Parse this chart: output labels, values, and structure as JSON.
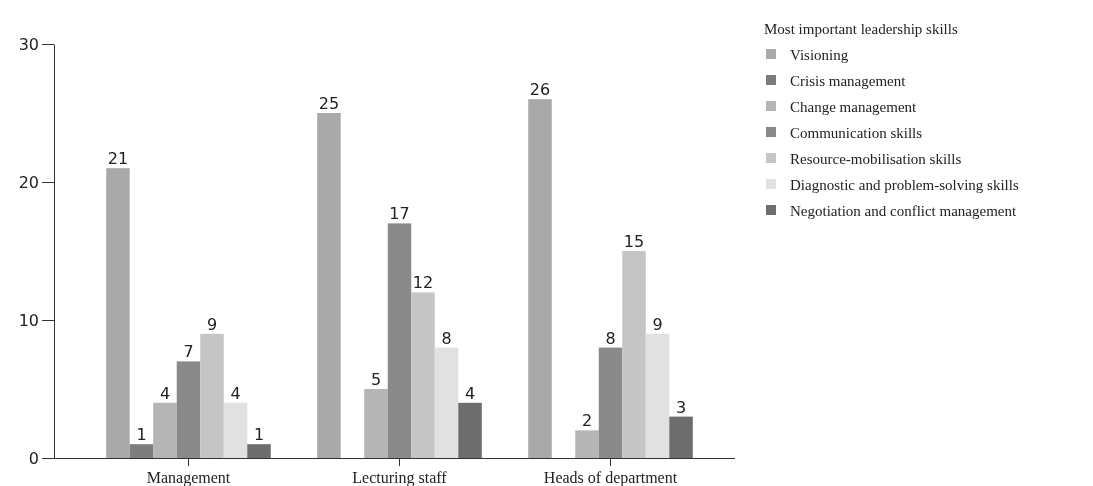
{
  "chart_data": {
    "type": "bar",
    "categories": [
      "Management",
      "Lecturing staff",
      "Heads of department"
    ],
    "legend_title": "Most important leadership skills",
    "series": [
      {
        "name": "Visioning",
        "color": "#a9a9a9",
        "values": [
          21,
          25,
          26
        ]
      },
      {
        "name": "Crisis management",
        "color": "#7d7d7d",
        "values": [
          1,
          null,
          null
        ]
      },
      {
        "name": "Change management",
        "color": "#b5b5b5",
        "values": [
          4,
          5,
          2
        ]
      },
      {
        "name": "Communication skills",
        "color": "#8a8a8a",
        "values": [
          7,
          17,
          8
        ]
      },
      {
        "name": "Resource-mobilisation skills",
        "color": "#c5c5c5",
        "values": [
          9,
          12,
          15
        ]
      },
      {
        "name": "Diagnostic and problem-solving skills",
        "color": "#e1e1e1",
        "values": [
          4,
          8,
          9
        ]
      },
      {
        "name": "Negotiation and conflict management",
        "color": "#6d6d6d",
        "values": [
          1,
          4,
          3
        ]
      }
    ],
    "ylim": [
      0,
      30
    ],
    "yticks": [
      0,
      10,
      20,
      30
    ],
    "data_labels": true,
    "legend": "top right",
    "grid": false
  }
}
